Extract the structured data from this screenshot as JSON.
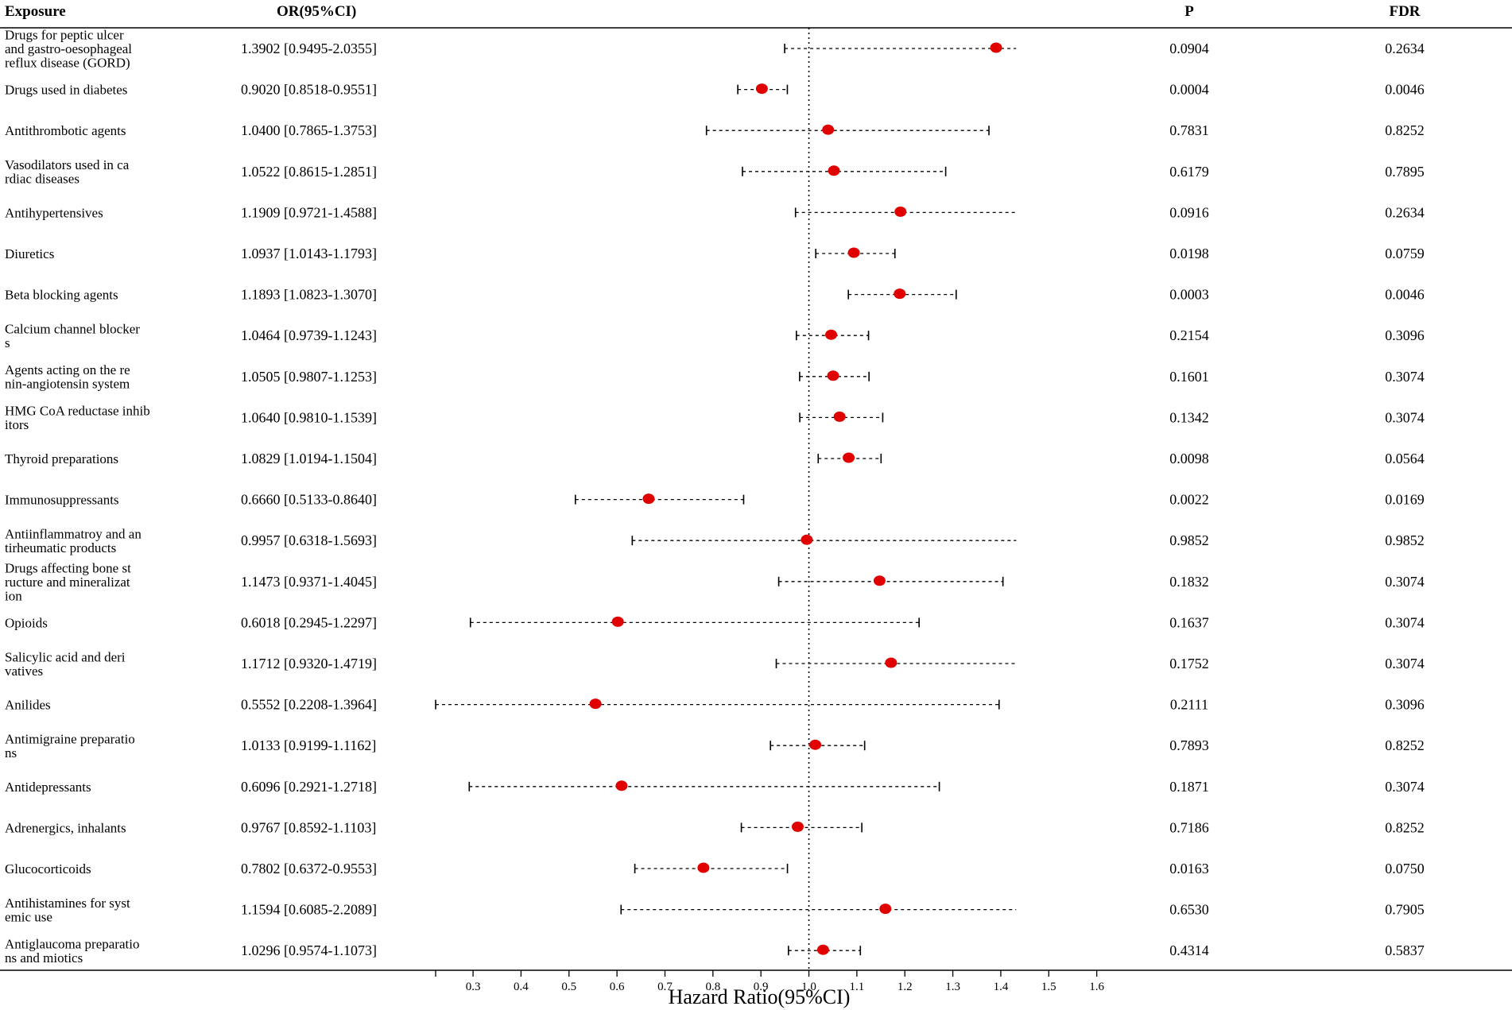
{
  "chart_data": {
    "type": "forest",
    "headers": {
      "exposure": "Exposure",
      "or_ci": "OR(95%CI)",
      "p": "P",
      "fdr": "FDR"
    },
    "xlabel": "Hazard Ratio(95%CI)",
    "xlim": [
      0.222,
      1.7
    ],
    "ticks": [
      "0.3",
      "0.4",
      "0.5",
      "0.6",
      "0.7",
      "0.8",
      "0.9",
      "1.0",
      "1.1",
      "1.2",
      "1.3",
      "1.4",
      "1.5",
      "1.6"
    ],
    "reference_line": 1.0,
    "colors": {
      "point": "#e00000",
      "line": "#000000"
    },
    "rows": [
      {
        "label": [
          "Drugs for peptic ulcer",
          "and gastro-oesophageal",
          "reflux disease (GORD)"
        ],
        "or_text": "1.3902 [0.9495-2.0355]",
        "or": 1.3902,
        "lo": 0.9495,
        "hi": 2.0355,
        "p": "0.0904",
        "fdr": "0.2634"
      },
      {
        "label": [
          "Drugs used in diabetes"
        ],
        "or_text": "0.9020 [0.8518-0.9551]",
        "or": 0.902,
        "lo": 0.8518,
        "hi": 0.9551,
        "p": "0.0004",
        "fdr": "0.0046"
      },
      {
        "label": [
          "Antithrombotic agents"
        ],
        "or_text": "1.0400 [0.7865-1.3753]",
        "or": 1.04,
        "lo": 0.7865,
        "hi": 1.3753,
        "p": "0.7831",
        "fdr": "0.8252"
      },
      {
        "label": [
          "Vasodilators used in ca",
          "rdiac diseases"
        ],
        "or_text": "1.0522 [0.8615-1.2851]",
        "or": 1.0522,
        "lo": 0.8615,
        "hi": 1.2851,
        "p": "0.6179",
        "fdr": "0.7895"
      },
      {
        "label": [
          "Antihypertensives"
        ],
        "or_text": "1.1909 [0.9721-1.4588]",
        "or": 1.1909,
        "lo": 0.9721,
        "hi": 1.4588,
        "p": "0.0916",
        "fdr": "0.2634"
      },
      {
        "label": [
          "Diuretics"
        ],
        "or_text": "1.0937 [1.0143-1.1793]",
        "or": 1.0937,
        "lo": 1.0143,
        "hi": 1.1793,
        "p": "0.0198",
        "fdr": "0.0759"
      },
      {
        "label": [
          "Beta blocking agents"
        ],
        "or_text": "1.1893 [1.0823-1.3070]",
        "or": 1.1893,
        "lo": 1.0823,
        "hi": 1.307,
        "p": "0.0003",
        "fdr": "0.0046"
      },
      {
        "label": [
          "Calcium channel blocker",
          "s"
        ],
        "or_text": "1.0464 [0.9739-1.1243]",
        "or": 1.0464,
        "lo": 0.9739,
        "hi": 1.1243,
        "p": "0.2154",
        "fdr": "0.3096"
      },
      {
        "label": [
          "Agents acting on the re",
          "nin-angiotensin system"
        ],
        "or_text": "1.0505 [0.9807-1.1253]",
        "or": 1.0505,
        "lo": 0.9807,
        "hi": 1.1253,
        "p": "0.1601",
        "fdr": "0.3074"
      },
      {
        "label": [
          "HMG CoA reductase inhib",
          "itors"
        ],
        "or_text": "1.0640 [0.9810-1.1539]",
        "or": 1.064,
        "lo": 0.981,
        "hi": 1.1539,
        "p": "0.1342",
        "fdr": "0.3074"
      },
      {
        "label": [
          "Thyroid preparations"
        ],
        "or_text": "1.0829 [1.0194-1.1504]",
        "or": 1.0829,
        "lo": 1.0194,
        "hi": 1.1504,
        "p": "0.0098",
        "fdr": "0.0564"
      },
      {
        "label": [
          "Immunosuppressants"
        ],
        "or_text": "0.6660 [0.5133-0.8640]",
        "or": 0.666,
        "lo": 0.5133,
        "hi": 0.864,
        "p": "0.0022",
        "fdr": "0.0169"
      },
      {
        "label": [
          "Antiinflammatroy and an",
          "tirheumatic products"
        ],
        "or_text": "0.9957 [0.6318-1.5693]",
        "or": 0.9957,
        "lo": 0.6318,
        "hi": 1.5693,
        "p": "0.9852",
        "fdr": "0.9852"
      },
      {
        "label": [
          "Drugs affecting bone st",
          "ructure and mineralizat",
          "ion"
        ],
        "or_text": "1.1473 [0.9371-1.4045]",
        "or": 1.1473,
        "lo": 0.9371,
        "hi": 1.4045,
        "p": "0.1832",
        "fdr": "0.3074"
      },
      {
        "label": [
          "Opioids"
        ],
        "or_text": "0.6018 [0.2945-1.2297]",
        "or": 0.6018,
        "lo": 0.2945,
        "hi": 1.2297,
        "p": "0.1637",
        "fdr": "0.3074"
      },
      {
        "label": [
          "Salicylic acid and deri",
          "vatives"
        ],
        "or_text": "1.1712 [0.9320-1.4719]",
        "or": 1.1712,
        "lo": 0.932,
        "hi": 1.4719,
        "p": "0.1752",
        "fdr": "0.3074"
      },
      {
        "label": [
          "Anilides"
        ],
        "or_text": "0.5552 [0.2208-1.3964]",
        "or": 0.5552,
        "lo": 0.2208,
        "hi": 1.3964,
        "p": "0.2111",
        "fdr": "0.3096"
      },
      {
        "label": [
          "Antimigraine preparatio",
          "ns"
        ],
        "or_text": "1.0133 [0.9199-1.1162]",
        "or": 1.0133,
        "lo": 0.9199,
        "hi": 1.1162,
        "p": "0.7893",
        "fdr": "0.8252"
      },
      {
        "label": [
          "Antidepressants"
        ],
        "or_text": "0.6096 [0.2921-1.2718]",
        "or": 0.6096,
        "lo": 0.2921,
        "hi": 1.2718,
        "p": "0.1871",
        "fdr": "0.3074"
      },
      {
        "label": [
          "Adrenergics, inhalants"
        ],
        "or_text": "0.9767 [0.8592-1.1103]",
        "or": 0.9767,
        "lo": 0.8592,
        "hi": 1.1103,
        "p": "0.7186",
        "fdr": "0.8252"
      },
      {
        "label": [
          "Glucocorticoids"
        ],
        "or_text": "0.7802 [0.6372-0.9553]",
        "or": 0.7802,
        "lo": 0.6372,
        "hi": 0.9553,
        "p": "0.0163",
        "fdr": "0.0750"
      },
      {
        "label": [
          "Antihistamines for syst",
          "emic use"
        ],
        "or_text": "1.1594 [0.6085-2.2089]",
        "or": 1.1594,
        "lo": 0.6085,
        "hi": 2.2089,
        "p": "0.6530",
        "fdr": "0.7905"
      },
      {
        "label": [
          "Antiglaucoma preparatio",
          "ns and miotics"
        ],
        "or_text": "1.0296 [0.9574-1.1073]",
        "or": 1.0296,
        "lo": 0.9574,
        "hi": 1.1073,
        "p": "0.4314",
        "fdr": "0.5837"
      }
    ]
  }
}
